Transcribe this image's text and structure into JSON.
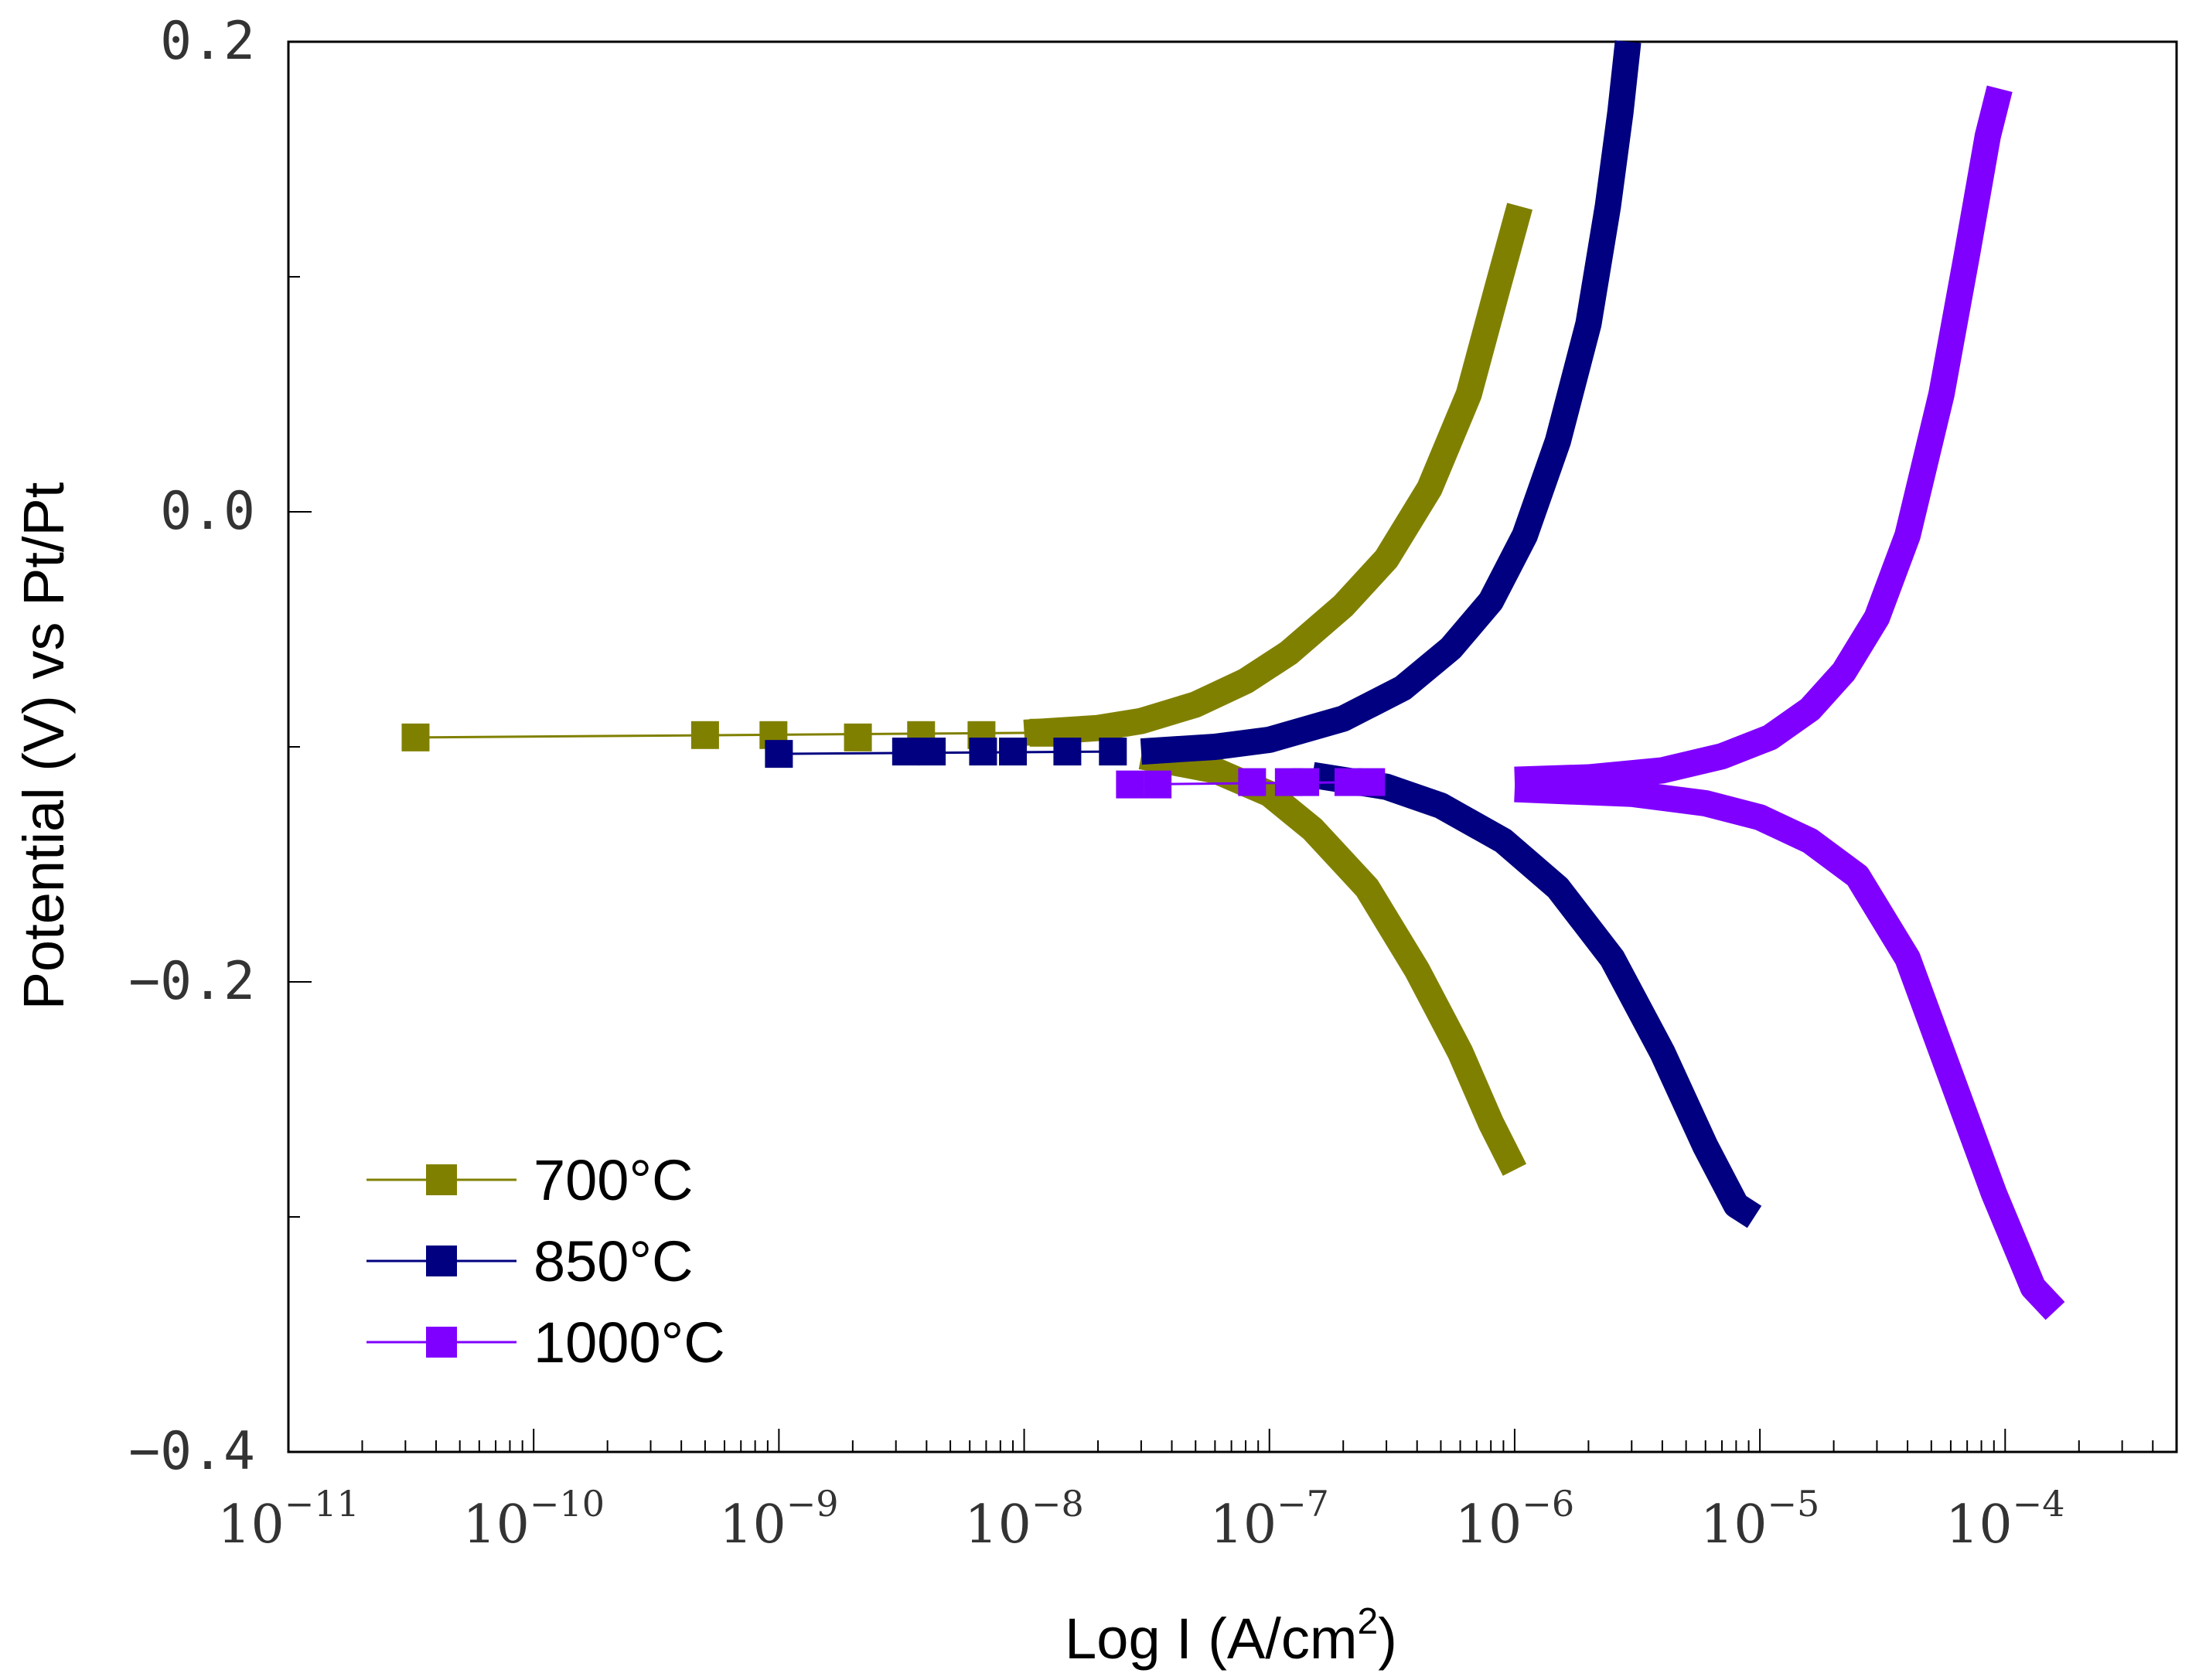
{
  "chart_data": {
    "type": "line",
    "title": "",
    "xlabel": "Log I (A/cm",
    "xlabel_sup": "2",
    "xlabel_end": ")",
    "ylabel": "Potential (V) vs Pt/Pt",
    "xscale": "log",
    "xlim": [
      1e-11,
      0.0005
    ],
    "ylim": [
      -0.4,
      0.2
    ],
    "x_tick_base": "10",
    "x_ticks": [
      {
        "value": 1e-11,
        "exp": "−11"
      },
      {
        "value": 1e-10,
        "exp": "−10"
      },
      {
        "value": 1e-09,
        "exp": "−9"
      },
      {
        "value": 1e-08,
        "exp": "−8"
      },
      {
        "value": 1e-07,
        "exp": "−7"
      },
      {
        "value": 1e-06,
        "exp": "−6"
      },
      {
        "value": 1e-05,
        "exp": "−5"
      },
      {
        "value": 0.0001,
        "exp": "−4"
      }
    ],
    "y_ticks": [
      {
        "value": 0.2,
        "label": "0.2"
      },
      {
        "value": 0.0,
        "label": "0.0"
      },
      {
        "value": -0.2,
        "label": "−0.2"
      },
      {
        "value": -0.4,
        "label": "−0.4"
      }
    ],
    "y_minor_ticks": [
      0.1,
      -0.1,
      -0.3
    ],
    "legend_position": "bottom-left",
    "series": [
      {
        "name": "700°C",
        "color": "#808000",
        "anodic": [
          {
            "x": 1e-08,
            "y": -0.094
          },
          {
            "x": 2e-08,
            "y": -0.092
          },
          {
            "x": 3e-08,
            "y": -0.089
          },
          {
            "x": 5e-08,
            "y": -0.082
          },
          {
            "x": 8e-08,
            "y": -0.072
          },
          {
            "x": 1.2e-07,
            "y": -0.06
          },
          {
            "x": 2e-07,
            "y": -0.04
          },
          {
            "x": 3e-07,
            "y": -0.02
          },
          {
            "x": 4.5e-07,
            "y": 0.01
          },
          {
            "x": 6.5e-07,
            "y": 0.05
          },
          {
            "x": 8.5e-07,
            "y": 0.095
          },
          {
            "x": 1.05e-06,
            "y": 0.13
          }
        ],
        "cathodic": [
          {
            "x": 3e-08,
            "y": -0.104
          },
          {
            "x": 6e-08,
            "y": -0.11
          },
          {
            "x": 1e-07,
            "y": -0.12
          },
          {
            "x": 1.5e-07,
            "y": -0.135
          },
          {
            "x": 2.5e-07,
            "y": -0.16
          },
          {
            "x": 4e-07,
            "y": -0.195
          },
          {
            "x": 6e-07,
            "y": -0.23
          },
          {
            "x": 8e-07,
            "y": -0.26
          },
          {
            "x": 1e-06,
            "y": -0.28
          }
        ],
        "markers": [
          {
            "x": 3.3e-11,
            "y": -0.096
          },
          {
            "x": 5e-10,
            "y": -0.095
          },
          {
            "x": 9.5e-10,
            "y": -0.095
          },
          {
            "x": 2.1e-09,
            "y": -0.096
          },
          {
            "x": 3.8e-09,
            "y": -0.095
          },
          {
            "x": 6.7e-09,
            "y": -0.095
          },
          {
            "x": 1.2e-08,
            "y": -0.094
          }
        ]
      },
      {
        "name": "850°C",
        "color": "#000080",
        "anodic": [
          {
            "x": 3e-08,
            "y": -0.102
          },
          {
            "x": 6e-08,
            "y": -0.1
          },
          {
            "x": 1e-07,
            "y": -0.097
          },
          {
            "x": 2e-07,
            "y": -0.088
          },
          {
            "x": 3.5e-07,
            "y": -0.075
          },
          {
            "x": 5.5e-07,
            "y": -0.058
          },
          {
            "x": 8e-07,
            "y": -0.038
          },
          {
            "x": 1.1e-06,
            "y": -0.01
          },
          {
            "x": 1.5e-06,
            "y": 0.03
          },
          {
            "x": 2e-06,
            "y": 0.08
          },
          {
            "x": 2.4e-06,
            "y": 0.13
          },
          {
            "x": 2.7e-06,
            "y": 0.17
          },
          {
            "x": 2.9e-06,
            "y": 0.2
          }
        ],
        "cathodic": [
          {
            "x": 1.5e-07,
            "y": -0.112
          },
          {
            "x": 3e-07,
            "y": -0.117
          },
          {
            "x": 5e-07,
            "y": -0.125
          },
          {
            "x": 9e-07,
            "y": -0.14
          },
          {
            "x": 1.5e-06,
            "y": -0.16
          },
          {
            "x": 2.5e-06,
            "y": -0.19
          },
          {
            "x": 4e-06,
            "y": -0.23
          },
          {
            "x": 6e-06,
            "y": -0.27
          },
          {
            "x": 8e-06,
            "y": -0.295
          },
          {
            "x": 9.5e-06,
            "y": -0.3
          }
        ],
        "markers": [
          {
            "x": 1e-09,
            "y": -0.103
          },
          {
            "x": 3.3e-09,
            "y": -0.102
          },
          {
            "x": 4.2e-09,
            "y": -0.102
          },
          {
            "x": 6.8e-09,
            "y": -0.102
          },
          {
            "x": 9e-09,
            "y": -0.102
          },
          {
            "x": 1.5e-08,
            "y": -0.102
          },
          {
            "x": 2.3e-08,
            "y": -0.102
          }
        ]
      },
      {
        "name": "1000°C",
        "color": "#8000FF",
        "anodic": [
          {
            "x": 1e-06,
            "y": -0.114
          },
          {
            "x": 2e-06,
            "y": -0.113
          },
          {
            "x": 4e-06,
            "y": -0.11
          },
          {
            "x": 7e-06,
            "y": -0.104
          },
          {
            "x": 1.1e-05,
            "y": -0.096
          },
          {
            "x": 1.6e-05,
            "y": -0.084
          },
          {
            "x": 2.2e-05,
            "y": -0.068
          },
          {
            "x": 3e-05,
            "y": -0.045
          },
          {
            "x": 4e-05,
            "y": -0.01
          },
          {
            "x": 5.5e-05,
            "y": 0.05
          },
          {
            "x": 7e-05,
            "y": 0.11
          },
          {
            "x": 8.5e-05,
            "y": 0.16
          },
          {
            "x": 9.5e-05,
            "y": 0.18
          }
        ],
        "cathodic": [
          {
            "x": 1e-06,
            "y": -0.118
          },
          {
            "x": 3e-06,
            "y": -0.12
          },
          {
            "x": 6e-06,
            "y": -0.124
          },
          {
            "x": 1e-05,
            "y": -0.13
          },
          {
            "x": 1.6e-05,
            "y": -0.14
          },
          {
            "x": 2.5e-05,
            "y": -0.155
          },
          {
            "x": 4e-05,
            "y": -0.19
          },
          {
            "x": 6e-05,
            "y": -0.24
          },
          {
            "x": 9e-05,
            "y": -0.29
          },
          {
            "x": 0.00013,
            "y": -0.33
          },
          {
            "x": 0.00016,
            "y": -0.34
          }
        ],
        "markers": [
          {
            "x": 2.7e-08,
            "y": -0.116
          },
          {
            "x": 3.5e-08,
            "y": -0.116
          },
          {
            "x": 8.5e-08,
            "y": -0.115
          },
          {
            "x": 1.2e-07,
            "y": -0.115
          },
          {
            "x": 1.4e-07,
            "y": -0.115
          },
          {
            "x": 2.1e-07,
            "y": -0.115
          },
          {
            "x": 2.6e-07,
            "y": -0.115
          }
        ]
      }
    ]
  }
}
